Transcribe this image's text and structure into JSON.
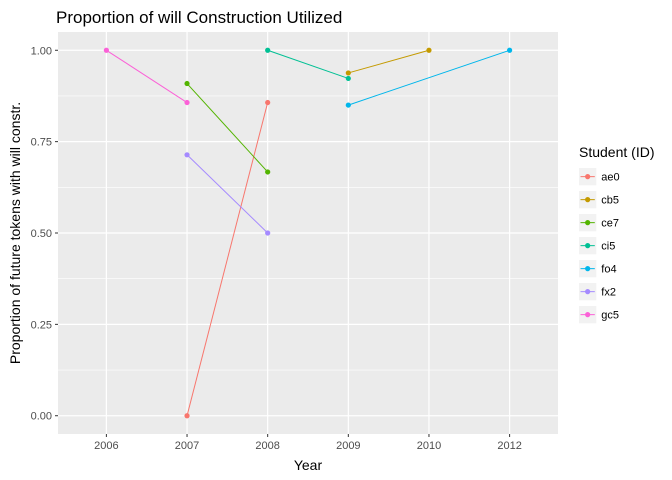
{
  "chart_data": {
    "type": "line",
    "title": "Proportion of will Construction Utilized",
    "xlabel": "Year",
    "ylabel": "Proportion of future tokens with will constr.",
    "x_categories": [
      "2006",
      "2007",
      "2008",
      "2009",
      "2010",
      "2012"
    ],
    "y_ticks": [
      0.0,
      0.25,
      0.5,
      0.75,
      1.0
    ],
    "y_tick_labels": [
      "0.00",
      "0.25",
      "0.50",
      "0.75",
      "1.00"
    ],
    "ylim": [
      -0.05,
      1.05
    ],
    "grid": true,
    "legend": {
      "title": "Student (ID)",
      "position": "right"
    },
    "series": [
      {
        "name": "ae0",
        "color": "#F8766D",
        "points": [
          {
            "x": "2007",
            "y": 0.0
          },
          {
            "x": "2008",
            "y": 0.857
          }
        ]
      },
      {
        "name": "cb5",
        "color": "#C49A00",
        "points": [
          {
            "x": "2009",
            "y": 0.938
          },
          {
            "x": "2010",
            "y": 1.0
          }
        ]
      },
      {
        "name": "ce7",
        "color": "#53B400",
        "points": [
          {
            "x": "2007",
            "y": 0.909
          },
          {
            "x": "2008",
            "y": 0.667
          }
        ]
      },
      {
        "name": "ci5",
        "color": "#00C094",
        "points": [
          {
            "x": "2008",
            "y": 1.0
          },
          {
            "x": "2009",
            "y": 0.923
          }
        ]
      },
      {
        "name": "fo4",
        "color": "#00B6EB",
        "points": [
          {
            "x": "2009",
            "y": 0.85
          },
          {
            "x": "2012",
            "y": 1.0
          }
        ]
      },
      {
        "name": "fx2",
        "color": "#A58AFF",
        "points": [
          {
            "x": "2007",
            "y": 0.714
          },
          {
            "x": "2008",
            "y": 0.5
          }
        ]
      },
      {
        "name": "gc5",
        "color": "#FB61D7",
        "points": [
          {
            "x": "2006",
            "y": 1.0
          },
          {
            "x": "2007",
            "y": 0.857
          }
        ]
      }
    ]
  }
}
